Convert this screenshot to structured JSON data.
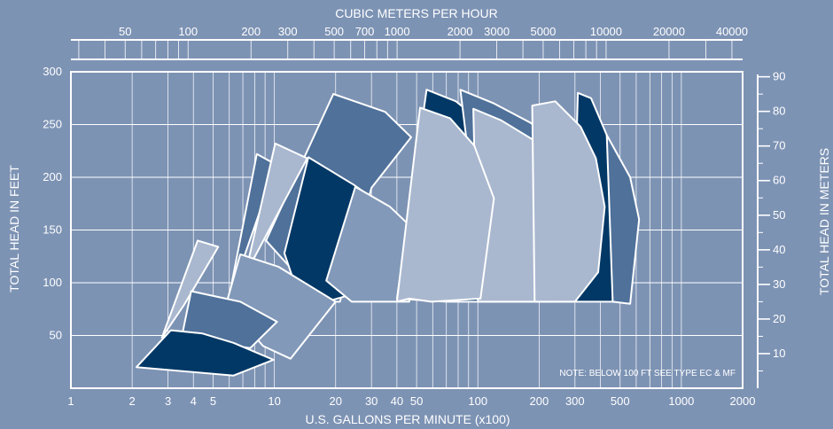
{
  "chart_data": {
    "type": "area",
    "title": "",
    "top_axis": {
      "label": "CUBIC METERS PER HOUR",
      "scale": "log",
      "ticks": [
        {
          "value": 50,
          "label": "50"
        },
        {
          "value": 100,
          "label": "100"
        },
        {
          "value": 200,
          "label": "200"
        },
        {
          "value": 300,
          "label": "300"
        },
        {
          "value": 500,
          "label": "500"
        },
        {
          "value": 700,
          "label": "700"
        },
        {
          "value": 1000,
          "label": "1000"
        },
        {
          "value": 2000,
          "label": "2000"
        },
        {
          "value": 3000,
          "label": "3000"
        },
        {
          "value": 5000,
          "label": "5000"
        },
        {
          "value": 10000,
          "label": "10000"
        },
        {
          "value": 20000,
          "label": "20000"
        },
        {
          "value": 40000,
          "label": "40000"
        }
      ]
    },
    "x_axis": {
      "label": "U.S. GALLONS PER MINUTE (x100)",
      "scale": "log",
      "range": [
        1,
        2000
      ],
      "ticks": [
        {
          "value": 1,
          "label": "1"
        },
        {
          "value": 2,
          "label": "2"
        },
        {
          "value": 3,
          "label": "3"
        },
        {
          "value": 4,
          "label": "4"
        },
        {
          "value": 5,
          "label": "5"
        },
        {
          "value": 10,
          "label": "10"
        },
        {
          "value": 20,
          "label": "20"
        },
        {
          "value": 30,
          "label": "30"
        },
        {
          "value": 40,
          "label": "40"
        },
        {
          "value": 50,
          "label": "50"
        },
        {
          "value": 100,
          "label": "100"
        },
        {
          "value": 200,
          "label": "200"
        },
        {
          "value": 300,
          "label": "300"
        },
        {
          "value": 500,
          "label": "500"
        },
        {
          "value": 1000,
          "label": "1000"
        },
        {
          "value": 2000,
          "label": "2000"
        }
      ]
    },
    "y_axis": {
      "label": "TOTAL HEAD IN FEET",
      "range": [
        0,
        300
      ],
      "ticks": [
        {
          "value": 50,
          "label": "50"
        },
        {
          "value": 100,
          "label": "100"
        },
        {
          "value": 150,
          "label": "150"
        },
        {
          "value": 200,
          "label": "200"
        },
        {
          "value": 250,
          "label": "250"
        },
        {
          "value": 300,
          "label": "300"
        }
      ]
    },
    "y2_axis": {
      "label": "TOTAL HEAD IN METERS",
      "range": [
        0,
        91.44
      ],
      "ticks": [
        {
          "value": 10,
          "label": "10"
        },
        {
          "value": 20,
          "label": "20"
        },
        {
          "value": 30,
          "label": "30"
        },
        {
          "value": 40,
          "label": "40"
        },
        {
          "value": 50,
          "label": "50"
        },
        {
          "value": 60,
          "label": "60"
        },
        {
          "value": 70,
          "label": "70"
        },
        {
          "value": 80,
          "label": "80"
        },
        {
          "value": 90,
          "label": "90"
        }
      ]
    },
    "grid": true,
    "note": "NOTE: BELOW 100 FT SEE TYPE EC & MF",
    "regions": [
      {
        "color": "#4f719a",
        "points": [
          [
            8.2,
            222
          ],
          [
            10.2,
            212
          ],
          [
            5.9,
            80
          ],
          [
            5.9,
            80
          ]
        ]
      },
      {
        "color": "#4f719a",
        "points": [
          [
            19.5,
            279
          ],
          [
            35,
            262
          ],
          [
            47,
            238
          ],
          [
            30,
            190
          ],
          [
            21,
            82
          ],
          [
            17,
            82
          ],
          [
            9.1,
            140
          ]
        ]
      },
      {
        "color": "#a9b8cf",
        "points": [
          [
            10.1,
            232
          ],
          [
            14.5,
            218
          ],
          [
            7.2,
            108
          ],
          [
            6.7,
            82
          ]
        ]
      },
      {
        "color": "#013866",
        "points": [
          [
            14.7,
            219
          ],
          [
            24.5,
            193
          ],
          [
            36,
            170
          ],
          [
            28.5,
            93
          ],
          [
            18,
            82
          ],
          [
            13.6,
            80
          ],
          [
            11.2,
            128
          ]
        ]
      },
      {
        "color": "#8299b9",
        "points": [
          [
            25,
            191
          ],
          [
            37,
            172
          ],
          [
            50,
            148
          ],
          [
            46,
            82
          ],
          [
            30,
            82
          ],
          [
            24,
            82
          ],
          [
            18,
            102
          ]
        ]
      },
      {
        "color": "#013866",
        "points": [
          [
            56,
            283
          ],
          [
            78,
            272
          ],
          [
            108,
            250
          ],
          [
            135,
            170
          ],
          [
            116,
            82
          ],
          [
            70,
            82
          ],
          [
            40,
            85
          ]
        ]
      },
      {
        "color": "#4f719a",
        "points": [
          [
            82,
            283
          ],
          [
            120,
            270
          ],
          [
            180,
            252
          ],
          [
            260,
            230
          ],
          [
            320,
            168
          ],
          [
            290,
            82
          ],
          [
            200,
            82
          ],
          [
            110,
            82
          ]
        ]
      },
      {
        "color": "#a9b8cf",
        "points": [
          [
            95,
            265
          ],
          [
            130,
            254
          ],
          [
            200,
            232
          ],
          [
            200,
            228
          ],
          [
            250,
            178
          ],
          [
            240,
            82
          ],
          [
            160,
            82
          ],
          [
            100,
            82
          ]
        ]
      },
      {
        "color": "#013866",
        "points": [
          [
            310,
            280
          ],
          [
            360,
            275
          ],
          [
            430,
            240
          ],
          [
            470,
            180
          ],
          [
            560,
            160
          ],
          [
            460,
            82
          ],
          [
            350,
            82
          ],
          [
            290,
            82
          ]
        ]
      },
      {
        "color": "#4f719a",
        "points": [
          [
            430,
            240
          ],
          [
            560,
            200
          ],
          [
            620,
            160
          ],
          [
            560,
            80
          ],
          [
            460,
            82
          ]
        ]
      },
      {
        "color": "#a9b8cf",
        "points": [
          [
            185,
            268
          ],
          [
            240,
            272
          ],
          [
            320,
            248
          ],
          [
            380,
            218
          ],
          [
            420,
            172
          ],
          [
            390,
            110
          ],
          [
            300,
            82
          ],
          [
            190,
            82
          ]
        ]
      },
      {
        "color": "#a9b8cf",
        "points": [
          [
            52,
            266
          ],
          [
            73,
            256
          ],
          [
            96,
            230
          ],
          [
            120,
            180
          ],
          [
            103,
            85
          ],
          [
            59,
            82
          ],
          [
            46,
            85
          ],
          [
            40,
            82
          ]
        ]
      },
      {
        "color": "#a9b8cf",
        "points": [
          [
            4.2,
            140
          ],
          [
            5.3,
            134
          ],
          [
            3.6,
            79
          ],
          [
            2.8,
            48
          ]
        ]
      },
      {
        "color": "#8299b9",
        "points": [
          [
            6.8,
            127
          ],
          [
            10.5,
            115
          ],
          [
            20,
            82
          ],
          [
            12,
            28
          ],
          [
            8.8,
            40
          ],
          [
            5.8,
            80
          ]
        ]
      },
      {
        "color": "#4f719a",
        "points": [
          [
            3.9,
            92
          ],
          [
            6.8,
            82
          ],
          [
            10.3,
            63
          ],
          [
            7.6,
            38
          ],
          [
            3.5,
            48
          ]
        ]
      },
      {
        "color": "#013866",
        "points": [
          [
            3.1,
            55
          ],
          [
            4.4,
            52
          ],
          [
            6.3,
            43
          ],
          [
            9.9,
            27
          ],
          [
            6.3,
            12
          ],
          [
            2.1,
            20
          ]
        ]
      }
    ]
  }
}
